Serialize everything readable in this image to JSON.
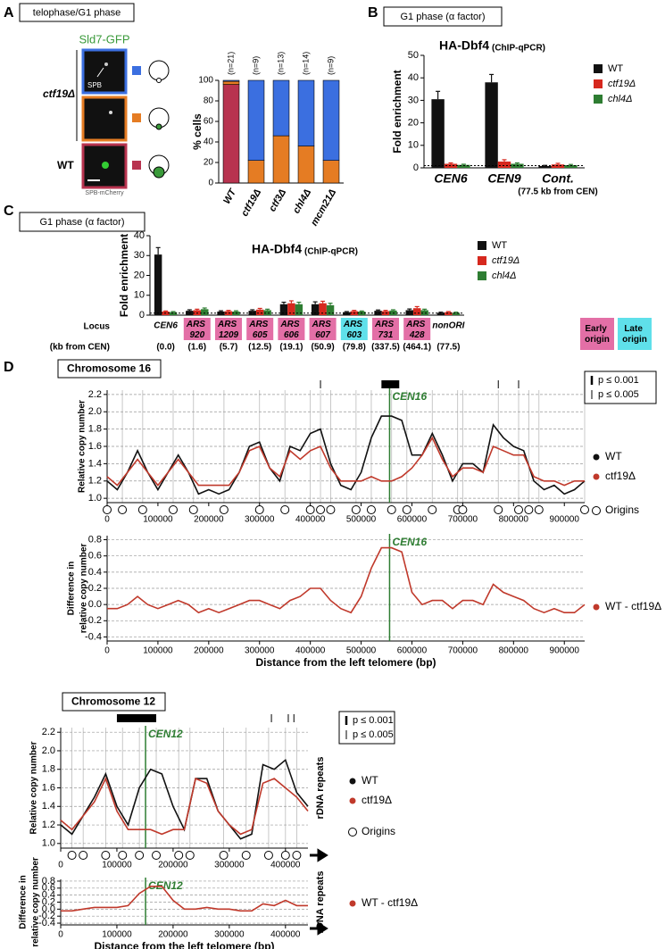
{
  "panel_labels": [
    "A",
    "B",
    "C",
    "D"
  ],
  "panel_a": {
    "condition": "telophase/G1 phase",
    "protein": "Sld7-GFP",
    "mutant": "ctf19Δ",
    "wild_type": "WT",
    "spb": "SPB",
    "marker": "SPB-mCherry"
  },
  "chart_data": [
    {
      "type": "bar",
      "stacked": true,
      "ylabel": "% cells",
      "categories": [
        "WT",
        "ctf19Δ",
        "ctf3Δ",
        "chl4Δ",
        "mcm21Δ"
      ],
      "annotations": [
        "(n=21)",
        "(n=9)",
        "(n=13)",
        "(n=14)",
        "(n=9)"
      ],
      "series": [
        {
          "color": "#b8334f",
          "values": [
            96,
            0,
            0,
            0,
            0
          ]
        },
        {
          "color": "#e57c23",
          "values": [
            3,
            22,
            46,
            36,
            22
          ]
        },
        {
          "color": "#3b6fe0",
          "values": [
            1,
            78,
            54,
            64,
            78
          ]
        }
      ],
      "ylim": [
        0,
        100
      ],
      "yticks": [
        0,
        20,
        40,
        60,
        80,
        100
      ]
    },
    {
      "type": "bar",
      "condition": "G1 phase (α factor)",
      "title": "HA-Dbf4",
      "title_note": "(ChIP-qPCR)",
      "ylabel": "Fold enrichment",
      "categories": [
        "CEN6",
        "CEN9",
        "Cont."
      ],
      "category_note": "(77.5 kb from CEN)",
      "series": [
        {
          "name": "WT",
          "color": "#111111",
          "values": [
            30.5,
            38,
            0.8
          ],
          "errors": [
            3.5,
            3.5,
            0.3
          ]
        },
        {
          "name": "ctf19Δ",
          "color": "#d6281e",
          "values": [
            1.8,
            2.8,
            1.5
          ],
          "errors": [
            0.4,
            0.8,
            0.5
          ]
        },
        {
          "name": "chl4Δ",
          "color": "#2e7d32",
          "values": [
            1.3,
            1.8,
            1.2
          ],
          "errors": [
            0.3,
            0.4,
            0.3
          ]
        }
      ],
      "baseline": 1,
      "ylim": [
        0,
        50
      ],
      "yticks": [
        0,
        10,
        20,
        30,
        40,
        50
      ]
    },
    {
      "type": "bar",
      "condition": "G1 phase (α factor)",
      "title": "HA-Dbf4",
      "title_note": "(ChIP-qPCR)",
      "ylabel": "Fold enrichment",
      "row_labels": [
        "Locus",
        "(kb from CEN)"
      ],
      "categories": [
        "CEN6",
        "ARS 920",
        "ARS 1209",
        "ARS 605",
        "ARS 606",
        "ARS 607",
        "ARS 603",
        "ARS 731",
        "ARS 428",
        "nonORI"
      ],
      "category_notes": [
        "(0.0)",
        "(1.6)",
        "(5.7)",
        "(12.5)",
        "(19.1)",
        "(50.9)",
        "(79.8)",
        "(337.5)",
        "(464.1)",
        "(77.5)"
      ],
      "category_colors": [
        null,
        "#e36fa6",
        "#e36fa6",
        "#e36fa6",
        "#e36fa6",
        "#e36fa6",
        "#5fe0ea",
        "#e36fa6",
        "#e36fa6",
        null
      ],
      "origin_legend": [
        {
          "label": "Early origin",
          "color": "#e36fa6"
        },
        {
          "label": "Late origin",
          "color": "#5fe0ea"
        }
      ],
      "series": [
        {
          "name": "WT",
          "color": "#111111",
          "values": [
            30.5,
            2.2,
            1.8,
            2.2,
            5.5,
            5.5,
            1.5,
            2.2,
            2.5,
            1.2
          ],
          "errors": [
            3.5,
            0.5,
            0.4,
            0.5,
            1,
            1.2,
            0.3,
            0.4,
            0.6,
            0.3
          ]
        },
        {
          "name": "ctf19Δ",
          "color": "#d6281e",
          "values": [
            1.8,
            2.5,
            2,
            2.8,
            6,
            6,
            2,
            2,
            3.5,
            1.5
          ],
          "errors": [
            0.3,
            0.5,
            0.4,
            0.6,
            1.2,
            1,
            0.4,
            0.4,
            0.8,
            0.3
          ]
        },
        {
          "name": "chl4Δ",
          "color": "#2e7d32",
          "values": [
            1.5,
            3,
            1.8,
            2.5,
            5.5,
            5,
            1.8,
            2.3,
            2.5,
            1.2
          ],
          "errors": [
            0.3,
            0.6,
            0.4,
            0.5,
            1,
            1,
            0.3,
            0.4,
            0.5,
            0.3
          ]
        }
      ],
      "baseline": 1,
      "ylim": [
        0,
        40
      ],
      "yticks": [
        0,
        10,
        20,
        30,
        40
      ]
    },
    {
      "type": "line",
      "title": "Chromosome 16",
      "ylabel": [
        "Relative copy number"
      ],
      "grid": true,
      "x": [
        0,
        20000,
        40000,
        60000,
        80000,
        100000,
        120000,
        140000,
        160000,
        180000,
        200000,
        220000,
        240000,
        260000,
        280000,
        300000,
        320000,
        340000,
        360000,
        380000,
        400000,
        420000,
        440000,
        460000,
        480000,
        500000,
        520000,
        540000,
        560000,
        580000,
        600000,
        620000,
        640000,
        660000,
        680000,
        700000,
        720000,
        740000,
        760000,
        780000,
        800000,
        820000,
        840000,
        860000,
        880000,
        900000,
        920000,
        940000
      ],
      "series": [
        {
          "name": "WT",
          "color": "#111111",
          "values": [
            1.2,
            1.1,
            1.3,
            1.55,
            1.3,
            1.1,
            1.3,
            1.5,
            1.3,
            1.05,
            1.1,
            1.05,
            1.1,
            1.3,
            1.6,
            1.65,
            1.35,
            1.2,
            1.6,
            1.55,
            1.75,
            1.8,
            1.4,
            1.15,
            1.1,
            1.3,
            1.7,
            1.95,
            1.95,
            1.9,
            1.5,
            1.5,
            1.75,
            1.5,
            1.2,
            1.4,
            1.4,
            1.3,
            1.85,
            1.7,
            1.6,
            1.55,
            1.2,
            1.1,
            1.15,
            1.05,
            1.1,
            1.2
          ]
        },
        {
          "name": "ctf19Δ",
          "color": "#c0392b",
          "values": [
            1.25,
            1.15,
            1.3,
            1.45,
            1.3,
            1.15,
            1.3,
            1.45,
            1.3,
            1.15,
            1.15,
            1.15,
            1.15,
            1.3,
            1.55,
            1.6,
            1.35,
            1.25,
            1.55,
            1.45,
            1.55,
            1.6,
            1.35,
            1.2,
            1.2,
            1.2,
            1.25,
            1.2,
            1.2,
            1.25,
            1.35,
            1.5,
            1.7,
            1.45,
            1.25,
            1.35,
            1.35,
            1.3,
            1.6,
            1.55,
            1.5,
            1.5,
            1.25,
            1.2,
            1.2,
            1.15,
            1.2,
            1.2
          ]
        }
      ],
      "origins": {
        "name": "Origins",
        "x": [
          0,
          30000,
          70000,
          130000,
          170000,
          230000,
          300000,
          350000,
          400000,
          420000,
          440000,
          490000,
          520000,
          560000,
          590000,
          640000,
          690000,
          700000,
          770000,
          810000,
          830000,
          850000,
          940000
        ]
      },
      "significance": {
        "legend": [
          "p ≤ 0.001",
          "p ≤ 0.005"
        ],
        "p001_regions": [
          [
            540000,
            575000
          ]
        ],
        "p005_positions": [
          420000,
          770000,
          810000
        ]
      },
      "centromere": {
        "x": 556000,
        "label": "CEN16"
      },
      "xlim": [
        0,
        940000
      ],
      "xticks": [
        0,
        100000,
        200000,
        300000,
        400000,
        500000,
        600000,
        700000,
        800000,
        900000
      ],
      "ylim": [
        0.95,
        2.25
      ],
      "yticks": [
        {
          "value": 1,
          "label": "1.0"
        },
        1.2,
        1.4,
        1.6,
        1.8,
        {
          "value": 2,
          "label": "2.0"
        },
        2.2
      ]
    },
    {
      "type": "line",
      "ylabel": [
        "Difference in",
        "relative copy number"
      ],
      "xlabel": "Distance from the left telomere (bp)",
      "grid": true,
      "x": [
        0,
        20000,
        40000,
        60000,
        80000,
        100000,
        120000,
        140000,
        160000,
        180000,
        200000,
        220000,
        240000,
        260000,
        280000,
        300000,
        320000,
        340000,
        360000,
        380000,
        400000,
        420000,
        440000,
        460000,
        480000,
        500000,
        520000,
        540000,
        560000,
        580000,
        600000,
        620000,
        640000,
        660000,
        680000,
        700000,
        720000,
        740000,
        760000,
        780000,
        800000,
        820000,
        840000,
        860000,
        880000,
        900000,
        920000,
        940000
      ],
      "series": [
        {
          "name": "WT - ctf19Δ",
          "color": "#c0392b",
          "values": [
            -0.05,
            -0.05,
            0,
            0.1,
            0,
            -0.05,
            0,
            0.05,
            0,
            -0.1,
            -0.05,
            -0.1,
            -0.05,
            0,
            0.05,
            0.05,
            0,
            -0.05,
            0.05,
            0.1,
            0.2,
            0.2,
            0.05,
            -0.05,
            -0.1,
            0.1,
            0.45,
            0.7,
            0.7,
            0.65,
            0.15,
            0,
            0.05,
            0.05,
            -0.05,
            0.05,
            0.05,
            0,
            0.25,
            0.15,
            0.1,
            0.05,
            -0.05,
            -0.1,
            -0.05,
            -0.1,
            -0.1,
            0
          ]
        }
      ],
      "centromere": {
        "x": 556000,
        "label": "CEN16"
      },
      "xlim": [
        0,
        940000
      ],
      "xticks": [
        0,
        100000,
        200000,
        300000,
        400000,
        500000,
        600000,
        700000,
        800000,
        900000
      ],
      "ylim": [
        -0.45,
        0.85
      ],
      "yticks": [
        -0.4,
        -0.2,
        {
          "value": 0,
          "label": "0.0"
        },
        0.2,
        0.4,
        0.6,
        0.8
      ]
    },
    {
      "type": "line",
      "title": "Chromosome 12",
      "ylabel": [
        "Relative copy number"
      ],
      "end_label": "rDNA repeats",
      "grid": true,
      "x": [
        0,
        20000,
        40000,
        60000,
        80000,
        100000,
        120000,
        140000,
        160000,
        180000,
        200000,
        220000,
        240000,
        260000,
        280000,
        300000,
        320000,
        340000,
        360000,
        380000,
        400000,
        420000,
        440000
      ],
      "series": [
        {
          "name": "WT",
          "color": "#111111",
          "values": [
            1.2,
            1.1,
            1.3,
            1.5,
            1.75,
            1.4,
            1.2,
            1.6,
            1.8,
            1.75,
            1.4,
            1.15,
            1.7,
            1.7,
            1.35,
            1.2,
            1.05,
            1.1,
            1.85,
            1.8,
            1.9,
            1.55,
            1.4
          ]
        },
        {
          "name": "ctf19Δ",
          "color": "#c0392b",
          "values": [
            1.25,
            1.15,
            1.3,
            1.45,
            1.7,
            1.35,
            1.15,
            1.15,
            1.15,
            1.1,
            1.15,
            1.15,
            1.7,
            1.65,
            1.35,
            1.2,
            1.1,
            1.15,
            1.65,
            1.7,
            1.6,
            1.5,
            1.35
          ]
        }
      ],
      "origins": {
        "name": "Origins",
        "x": [
          20000,
          40000,
          80000,
          110000,
          140000,
          170000,
          210000,
          230000,
          290000,
          330000,
          370000,
          400000,
          420000
        ]
      },
      "significance": {
        "legend": [
          "p ≤ 0.001",
          "p ≤ 0.005"
        ],
        "p001_regions": [
          [
            100000,
            170000
          ]
        ],
        "p005_positions": [
          375000,
          405000,
          415000
        ]
      },
      "centromere": {
        "x": 151000,
        "label": "CEN12"
      },
      "xlim": [
        0,
        440000
      ],
      "xticks": [
        0,
        100000,
        200000,
        300000,
        400000
      ],
      "ylim": [
        0.95,
        2.25
      ],
      "yticks": [
        {
          "value": 1,
          "label": "1.0"
        },
        1.2,
        1.4,
        1.6,
        1.8,
        {
          "value": 2,
          "label": "2.0"
        },
        2.2
      ]
    },
    {
      "type": "line",
      "ylabel": [
        "Difference in",
        "relative copy number"
      ],
      "xlabel": "Distance from the left telomere (bp)",
      "end_label": "rDNA repeats",
      "grid": true,
      "x": [
        0,
        20000,
        40000,
        60000,
        80000,
        100000,
        120000,
        140000,
        160000,
        180000,
        200000,
        220000,
        240000,
        260000,
        280000,
        300000,
        320000,
        340000,
        360000,
        380000,
        400000,
        420000,
        440000
      ],
      "series": [
        {
          "name": "WT - ctf19Δ",
          "color": "#c0392b",
          "values": [
            -0.05,
            -0.05,
            0,
            0.05,
            0.05,
            0.05,
            0.1,
            0.45,
            0.65,
            0.65,
            0.25,
            0,
            0,
            0.05,
            0,
            0,
            -0.05,
            -0.05,
            0.15,
            0.1,
            0.25,
            0.1,
            0.1
          ]
        }
      ],
      "centromere": {
        "x": 151000,
        "label": "CEN12"
      },
      "xlim": [
        0,
        440000
      ],
      "xticks": [
        0,
        100000,
        200000,
        300000,
        400000
      ],
      "ylim": [
        -0.45,
        0.85
      ],
      "yticks": [
        -0.4,
        -0.2,
        {
          "value": 0,
          "label": "0.0"
        },
        0.2,
        0.4,
        0.6,
        0.8
      ]
    }
  ]
}
